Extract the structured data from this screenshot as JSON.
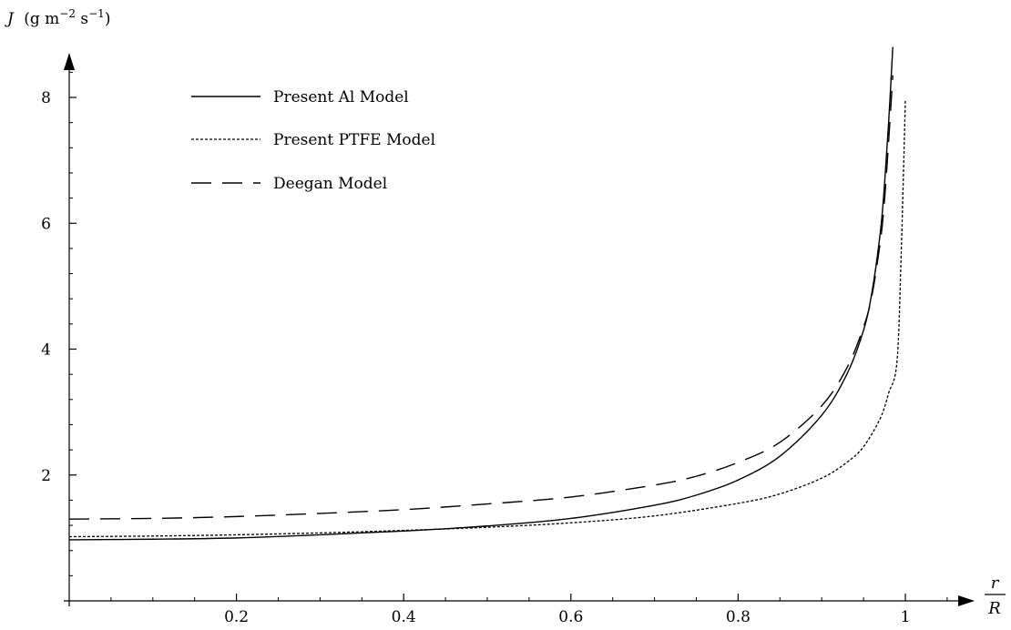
{
  "chart_data": {
    "type": "line",
    "ylabel": {
      "symbol": "J",
      "units_open": "(g m",
      "units_exp1": "−2",
      "units_mid": " s",
      "units_exp2": "−1",
      "units_close": ")"
    },
    "xlabel": {
      "numerator": "r",
      "denominator": "R"
    },
    "xlim": [
      0,
      1.08
    ],
    "ylim": [
      0,
      8.8
    ],
    "x_ticks": [
      {
        "value": 0.2,
        "label": "0.2"
      },
      {
        "value": 0.4,
        "label": "0.4"
      },
      {
        "value": 0.6,
        "label": "0.6"
      },
      {
        "value": 0.8,
        "label": "0.8"
      },
      {
        "value": 1.0,
        "label": "1"
      }
    ],
    "y_ticks": [
      {
        "value": 2,
        "label": "2"
      },
      {
        "value": 4,
        "label": "4"
      },
      {
        "value": 6,
        "label": "6"
      },
      {
        "value": 8,
        "label": "8"
      }
    ],
    "legend_position": "top-left",
    "series": [
      {
        "name": "Present Al Model",
        "style": "solid",
        "x": [
          0.0,
          0.1,
          0.2,
          0.3,
          0.4,
          0.5,
          0.6,
          0.7,
          0.75,
          0.8,
          0.85,
          0.9,
          0.93,
          0.95,
          0.96,
          0.97,
          0.975,
          0.98,
          0.985
        ],
        "y": [
          0.97,
          0.98,
          1.0,
          1.05,
          1.11,
          1.19,
          1.31,
          1.52,
          1.68,
          1.92,
          2.3,
          2.95,
          3.6,
          4.3,
          4.9,
          5.85,
          6.6,
          7.6,
          8.8
        ]
      },
      {
        "name": "Present PTFE Model",
        "style": "dotted",
        "x": [
          0.0,
          0.1,
          0.2,
          0.3,
          0.4,
          0.5,
          0.6,
          0.7,
          0.8,
          0.85,
          0.9,
          0.93,
          0.95,
          0.97,
          0.98,
          0.99,
          0.995,
          1.0
        ],
        "y": [
          1.02,
          1.03,
          1.05,
          1.08,
          1.12,
          1.17,
          1.24,
          1.35,
          1.55,
          1.7,
          1.95,
          2.2,
          2.45,
          2.9,
          3.3,
          3.8,
          5.5,
          7.95
        ]
      },
      {
        "name": "Deegan Model",
        "style": "dashed",
        "x": [
          0.0,
          0.1,
          0.2,
          0.3,
          0.4,
          0.5,
          0.6,
          0.7,
          0.75,
          0.8,
          0.85,
          0.9,
          0.93,
          0.95,
          0.96,
          0.97,
          0.975,
          0.98,
          0.985
        ],
        "y": [
          1.3,
          1.31,
          1.34,
          1.39,
          1.45,
          1.54,
          1.65,
          1.84,
          1.98,
          2.2,
          2.52,
          3.1,
          3.7,
          4.35,
          4.85,
          5.7,
          6.35,
          7.3,
          8.35
        ]
      }
    ]
  }
}
